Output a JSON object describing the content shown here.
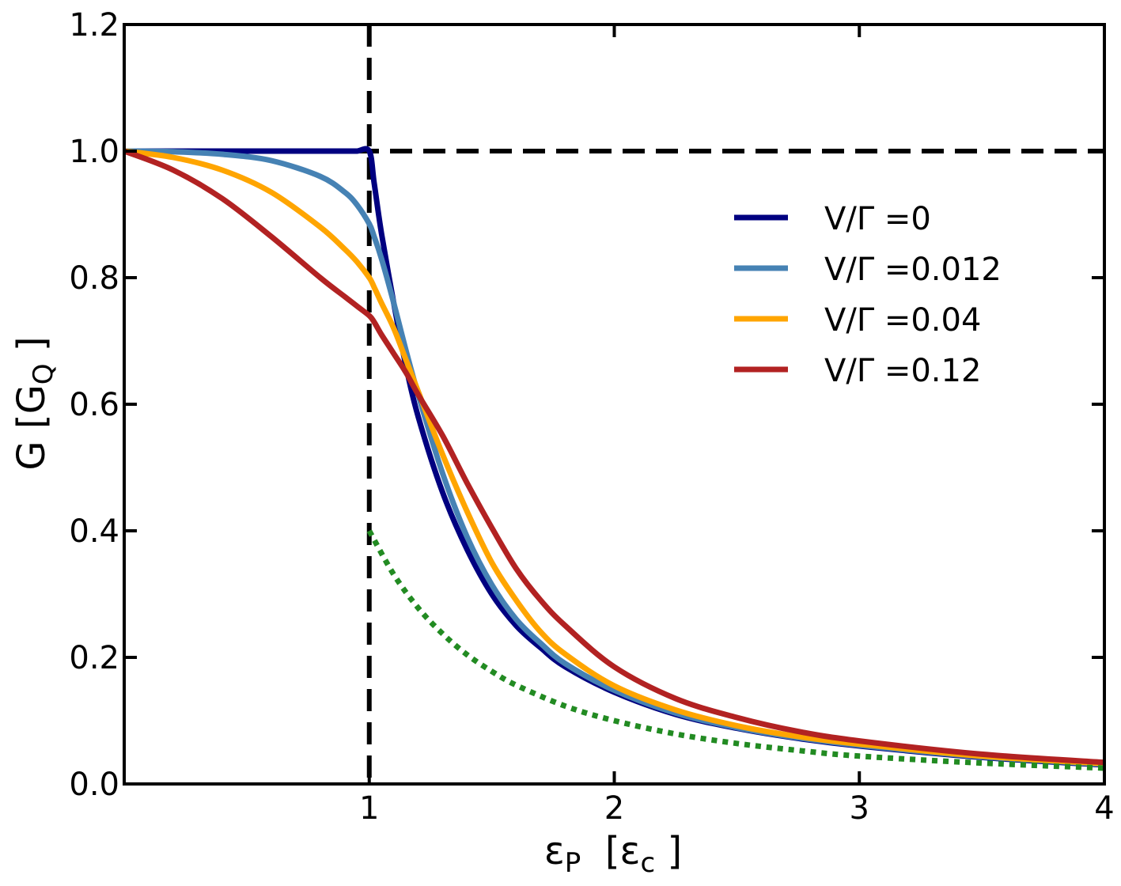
{
  "chart_data": {
    "type": "line",
    "xlabel": {
      "main": "ε",
      "sub1": "P",
      "mid": "  [ε",
      "sub2": "c",
      "end": " ]"
    },
    "ylabel": {
      "main": "G [G",
      "sub": "Q",
      "end": " ]"
    },
    "xlim": [
      0,
      4
    ],
    "ylim": [
      0,
      1.2
    ],
    "x_ticks": [
      1,
      2,
      3,
      4
    ],
    "x_tick_labels": [
      "1",
      "2",
      "3",
      "4"
    ],
    "y_ticks": [
      0,
      0.2,
      0.4,
      0.6,
      0.8,
      1.0,
      1.2
    ],
    "y_tick_labels": [
      "0.0",
      "0.2",
      "0.4",
      "0.6",
      "0.8",
      "1.0",
      "1.2"
    ],
    "grid": false,
    "legend_position": "upper-right",
    "x": [
      0,
      0.2,
      0.4,
      0.6,
      0.8,
      0.9,
      0.95,
      1.0,
      1.02,
      1.05,
      1.1,
      1.15,
      1.2,
      1.3,
      1.4,
      1.5,
      1.6,
      1.7,
      1.8,
      2.0,
      2.25,
      2.5,
      2.75,
      3.0,
      3.5,
      4.0
    ],
    "series": [
      {
        "name": "V/Γ =0",
        "color": "#000080",
        "values": [
          1.0,
          1.0,
          1.0,
          1.0,
          1.0,
          1.0,
          1.0,
          1.0,
          0.95,
          0.87,
          0.76,
          0.66,
          0.58,
          0.46,
          0.37,
          0.3,
          0.25,
          0.215,
          0.185,
          0.145,
          0.11,
          0.088,
          0.072,
          0.06,
          0.042,
          0.03
        ]
      },
      {
        "name": "V/Γ =0.012",
        "color": "#4682b4",
        "values": [
          1.0,
          0.999,
          0.995,
          0.985,
          0.96,
          0.935,
          0.915,
          0.885,
          0.865,
          0.83,
          0.76,
          0.685,
          0.615,
          0.49,
          0.39,
          0.315,
          0.26,
          0.222,
          0.19,
          0.148,
          0.112,
          0.089,
          0.073,
          0.061,
          0.043,
          0.031
        ]
      },
      {
        "name": "V/Γ =0.04",
        "color": "#ffa500",
        "values": [
          1.0,
          0.99,
          0.97,
          0.935,
          0.88,
          0.845,
          0.825,
          0.8,
          0.785,
          0.76,
          0.72,
          0.67,
          0.62,
          0.52,
          0.43,
          0.35,
          0.29,
          0.24,
          0.205,
          0.155,
          0.117,
          0.092,
          0.075,
          0.063,
          0.044,
          0.032
        ]
      },
      {
        "name": "V/Γ =0.12",
        "color": "#b22222",
        "values": [
          1.0,
          0.97,
          0.925,
          0.865,
          0.8,
          0.77,
          0.755,
          0.74,
          0.73,
          0.71,
          0.68,
          0.65,
          0.615,
          0.55,
          0.475,
          0.405,
          0.34,
          0.29,
          0.25,
          0.185,
          0.135,
          0.105,
          0.083,
          0.068,
          0.047,
          0.034
        ]
      }
    ],
    "reference_lines": [
      {
        "orientation": "horizontal",
        "value": 1.0,
        "style": "dashed",
        "color": "#000000"
      },
      {
        "orientation": "vertical",
        "value": 1.0,
        "style": "dashed",
        "color": "#000000"
      }
    ],
    "dotted_curve": {
      "color": "#228b22",
      "x": [
        1.0,
        1.1,
        1.2,
        1.3,
        1.4,
        1.5,
        1.6,
        1.8,
        2.0,
        2.25,
        2.5,
        2.75,
        3.0,
        3.5,
        4.0
      ],
      "values": [
        0.4,
        0.331,
        0.278,
        0.237,
        0.204,
        0.178,
        0.156,
        0.123,
        0.1,
        0.079,
        0.064,
        0.053,
        0.044,
        0.033,
        0.025
      ]
    }
  }
}
